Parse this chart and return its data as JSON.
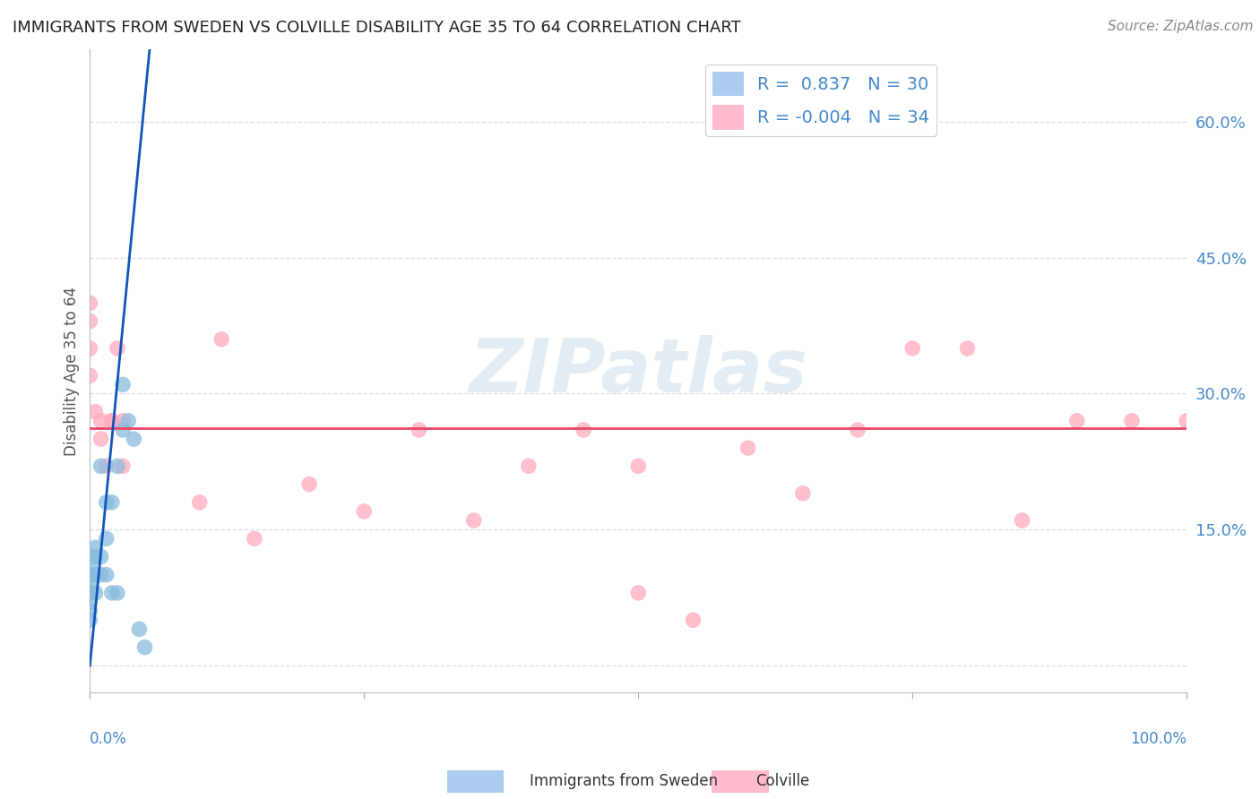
{
  "title": "IMMIGRANTS FROM SWEDEN VS COLVILLE DISABILITY AGE 35 TO 64 CORRELATION CHART",
  "source": "Source: ZipAtlas.com",
  "ylabel": "Disability Age 35 to 64",
  "yticks": [
    0.0,
    0.15,
    0.3,
    0.45,
    0.6
  ],
  "ytick_labels": [
    "",
    "15.0%",
    "30.0%",
    "45.0%",
    "60.0%"
  ],
  "xlim": [
    0.0,
    1.0
  ],
  "ylim": [
    -0.03,
    0.68
  ],
  "blue_R": 0.837,
  "blue_N": 30,
  "pink_R": -0.004,
  "pink_N": 34,
  "blue_scatter_x": [
    0.0,
    0.0,
    0.0,
    0.0,
    0.0,
    0.0,
    0.0,
    0.0,
    0.0,
    0.0,
    0.005,
    0.005,
    0.005,
    0.005,
    0.01,
    0.01,
    0.01,
    0.015,
    0.015,
    0.015,
    0.02,
    0.02,
    0.025,
    0.025,
    0.03,
    0.03,
    0.035,
    0.04,
    0.045,
    0.05
  ],
  "blue_scatter_y": [
    0.05,
    0.06,
    0.07,
    0.08,
    0.08,
    0.09,
    0.1,
    0.1,
    0.11,
    0.12,
    0.08,
    0.1,
    0.12,
    0.13,
    0.1,
    0.12,
    0.22,
    0.1,
    0.14,
    0.18,
    0.08,
    0.18,
    0.08,
    0.22,
    0.26,
    0.31,
    0.27,
    0.25,
    0.04,
    0.02
  ],
  "pink_scatter_x": [
    0.0,
    0.0,
    0.0,
    0.0,
    0.005,
    0.01,
    0.015,
    0.02,
    0.025,
    0.03,
    0.1,
    0.15,
    0.2,
    0.25,
    0.3,
    0.35,
    0.4,
    0.45,
    0.5,
    0.55,
    0.6,
    0.65,
    0.7,
    0.75,
    0.8,
    0.85,
    0.9,
    0.95,
    1.0,
    0.5,
    0.02,
    0.03,
    0.01,
    0.12
  ],
  "pink_scatter_y": [
    0.4,
    0.35,
    0.38,
    0.32,
    0.28,
    0.25,
    0.22,
    0.27,
    0.35,
    0.27,
    0.18,
    0.14,
    0.2,
    0.17,
    0.26,
    0.16,
    0.22,
    0.26,
    0.22,
    0.05,
    0.24,
    0.19,
    0.26,
    0.35,
    0.35,
    0.16,
    0.27,
    0.27,
    0.27,
    0.08,
    0.27,
    0.22,
    0.27,
    0.36
  ],
  "blue_line_x": [
    0.0,
    1.0
  ],
  "blue_line_y": [
    0.0,
    0.62
  ],
  "pink_line_y": 0.262,
  "watermark": "ZIPatlas",
  "background_color": "#ffffff",
  "grid_color": "#d8dce8",
  "blue_dot_color": "#88bbdd",
  "pink_dot_color": "#ffaabb",
  "blue_line_color": "#1155bb",
  "pink_line_color": "#ee4466",
  "legend_blue_patch": "#aaccee",
  "legend_pink_patch": "#ffbbcc",
  "tick_label_color": "#4488cc",
  "axis_label_color": "#555555",
  "title_color": "#222222",
  "source_color": "#888888"
}
